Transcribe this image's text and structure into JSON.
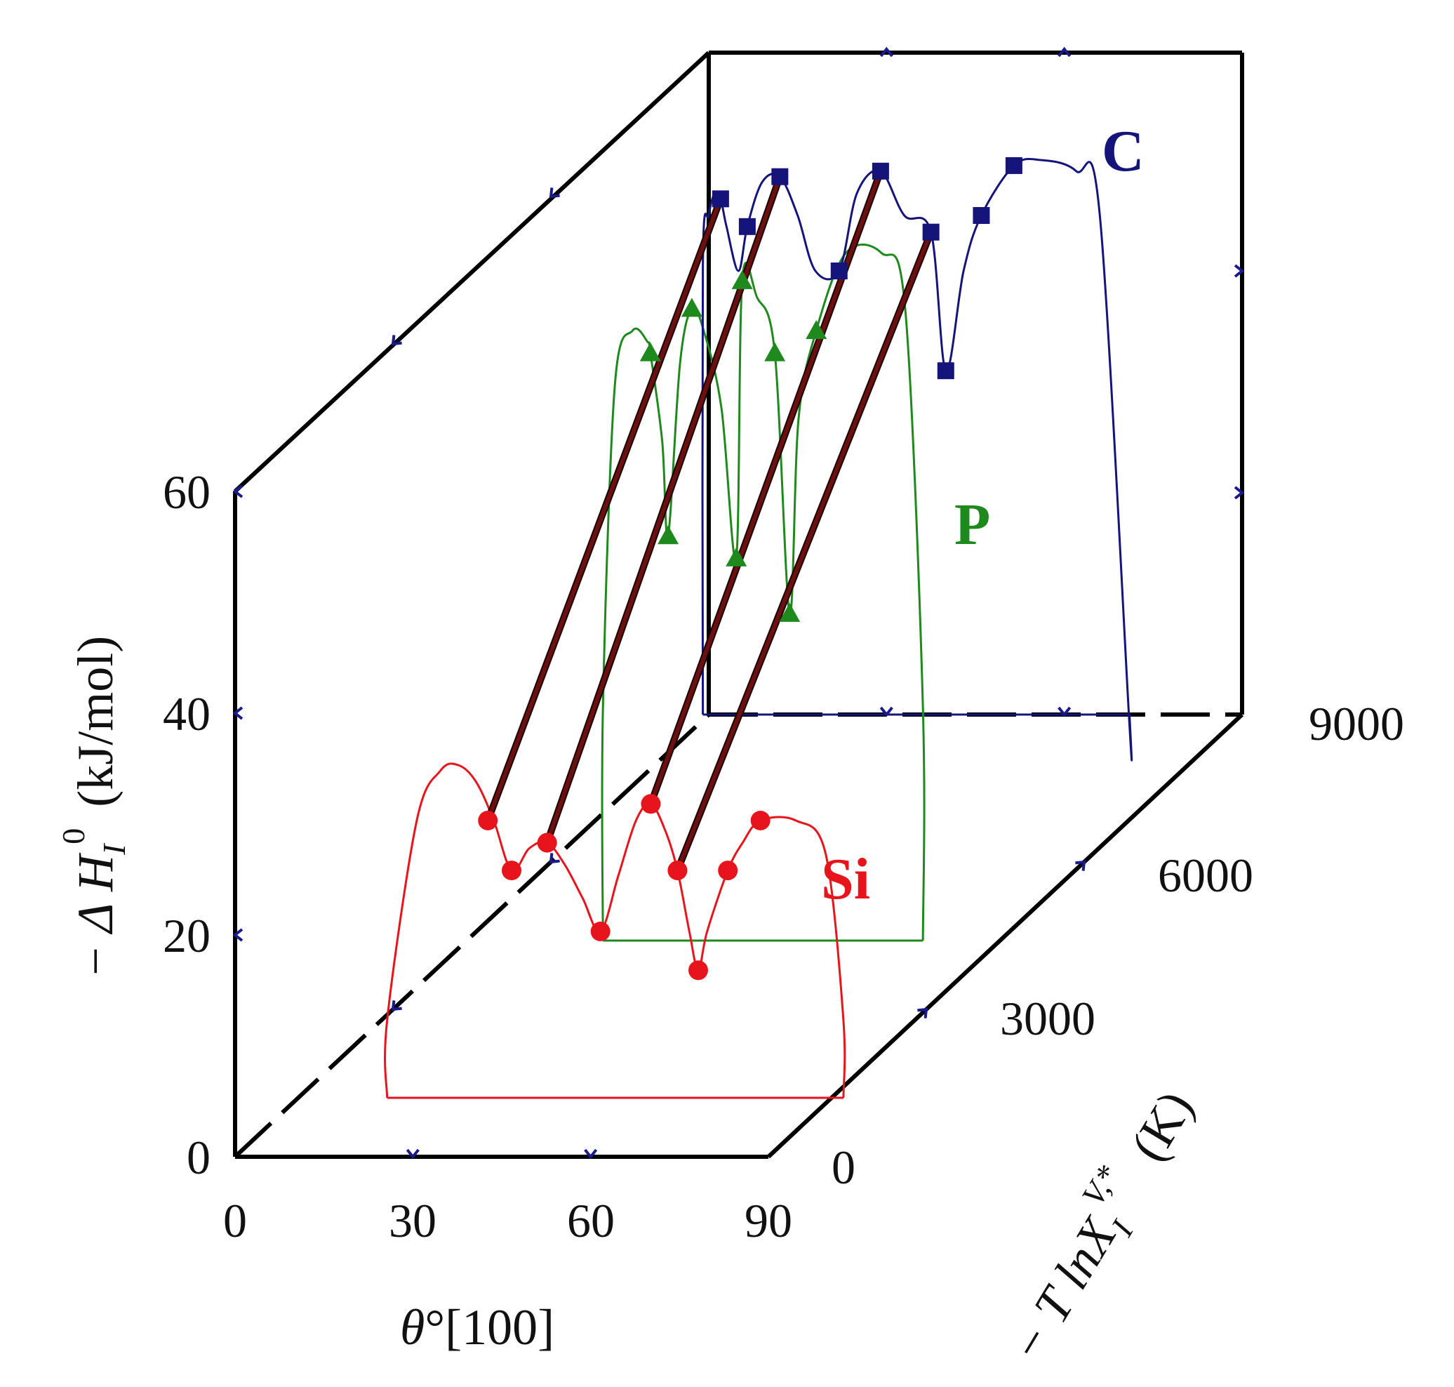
{
  "chart_data": {
    "type": "line",
    "projection": "3d-stacked",
    "x_axis": {
      "label_symbol": "θ",
      "label_unit": "°[100]",
      "range": [
        0,
        90
      ],
      "ticks": [
        "0",
        "30",
        "60",
        "90"
      ]
    },
    "y_axis": {
      "label": "−ΔH_I^0 (kJ/mol)",
      "label_main": "− Δ H",
      "label_sub": "I",
      "label_sup": "0",
      "label_unit": "(kJ/mol)",
      "range": [
        0,
        60
      ],
      "ticks": [
        "0",
        "20",
        "40",
        "60"
      ]
    },
    "z_axis": {
      "label": "−T lnX_I^{V,*} (K)",
      "label_main": "− T lnX",
      "label_sub": "I",
      "label_sup": "V,*",
      "label_unit": "(K)",
      "range": [
        0,
        9000
      ],
      "ticks": [
        "0",
        "3000",
        "6000",
        "9000"
      ]
    },
    "series": [
      {
        "name": "Si",
        "color": "#e8141b",
        "marker": "circle",
        "z": 1200,
        "x": [
          32.0,
          36.0,
          42.0,
          51.0,
          59.5,
          64.0,
          67.5,
          72.5,
          78.0
        ],
        "y": [
          25.0,
          20.5,
          23.0,
          15.0,
          26.5,
          20.5,
          11.5,
          20.5,
          25.0
        ],
        "curve_x": [
          15,
          20,
          24,
          27,
          30,
          33,
          36,
          39,
          42,
          45,
          48,
          51,
          54,
          57,
          59.5,
          62,
          64,
          66,
          67.5,
          69,
          72.5,
          75,
          78,
          84,
          89,
          92
        ],
        "curve_y": [
          7,
          25,
          29.5,
          30,
          28.5,
          25,
          20.5,
          22.5,
          23,
          21,
          18,
          15,
          20,
          25,
          26.5,
          24,
          20.5,
          15,
          11.5,
          15,
          20.5,
          23,
          25,
          25,
          22,
          7
        ]
      },
      {
        "name": "P",
        "color": "#1e8a1e",
        "marker": "triangle",
        "z": 4400,
        "x": [
          31.0,
          34.0,
          38.0,
          45.5,
          46.5,
          52.0,
          54.5,
          59.0
        ],
        "y": [
          53.0,
          36.5,
          57.0,
          34.5,
          59.5,
          53.0,
          29.5,
          55.0
        ],
        "curve_x": [
          23,
          25,
          28,
          30.5,
          31,
          33,
          34,
          36,
          38,
          40,
          43,
          45.5,
          46.5,
          49,
          52,
          54.5,
          56,
          59,
          64,
          70,
          74,
          77
        ],
        "curve_y": [
          21,
          50,
          55,
          54,
          53,
          45,
          36.5,
          52,
          57,
          55,
          48,
          34.5,
          59.5,
          58,
          53,
          29.5,
          47,
          55,
          62,
          62,
          57,
          21
        ]
      },
      {
        "name": "C",
        "color": "#14147a",
        "marker": "square",
        "z": 9000,
        "x": [
          2.0,
          6.5,
          12.0,
          22.0,
          29.0,
          37.5,
          40.0,
          46.0,
          51.5
        ],
        "y": [
          46.5,
          44.0,
          48.5,
          40.0,
          49.0,
          43.5,
          31.0,
          45.0,
          49.5
        ],
        "curve_x": [
          -1,
          0,
          1,
          2,
          3,
          5,
          6.5,
          9,
          12,
          15,
          18,
          22,
          25,
          29,
          33,
          37.5,
          40,
          43,
          46,
          51.5,
          56,
          62,
          66,
          71
        ],
        "curve_y": [
          40.5,
          45,
          47,
          46.5,
          44,
          40,
          44,
          48,
          48.5,
          45,
          40,
          40,
          47,
          49,
          45,
          43.5,
          31,
          40,
          45,
          49.5,
          50,
          49,
          45,
          -1
        ]
      }
    ],
    "connector_lines": [
      {
        "from": {
          "series": "Si",
          "x": 32.0,
          "y": 25.0
        },
        "to": {
          "series": "C",
          "x": 2.0,
          "y": 46.5
        }
      },
      {
        "from": {
          "series": "Si",
          "x": 42.0,
          "y": 23.0
        },
        "to": {
          "series": "C",
          "x": 12.0,
          "y": 48.5
        }
      },
      {
        "from": {
          "series": "Si",
          "x": 59.5,
          "y": 26.5
        },
        "to": {
          "series": "C",
          "x": 29.0,
          "y": 49.0
        }
      },
      {
        "from": {
          "series": "Si",
          "x": 64.0,
          "y": 20.5
        },
        "to": {
          "series": "C",
          "x": 37.5,
          "y": 43.5
        }
      }
    ]
  },
  "colors": {
    "connector": "#6b1010",
    "tick": "#1a1a8c",
    "frame": "#000000"
  }
}
